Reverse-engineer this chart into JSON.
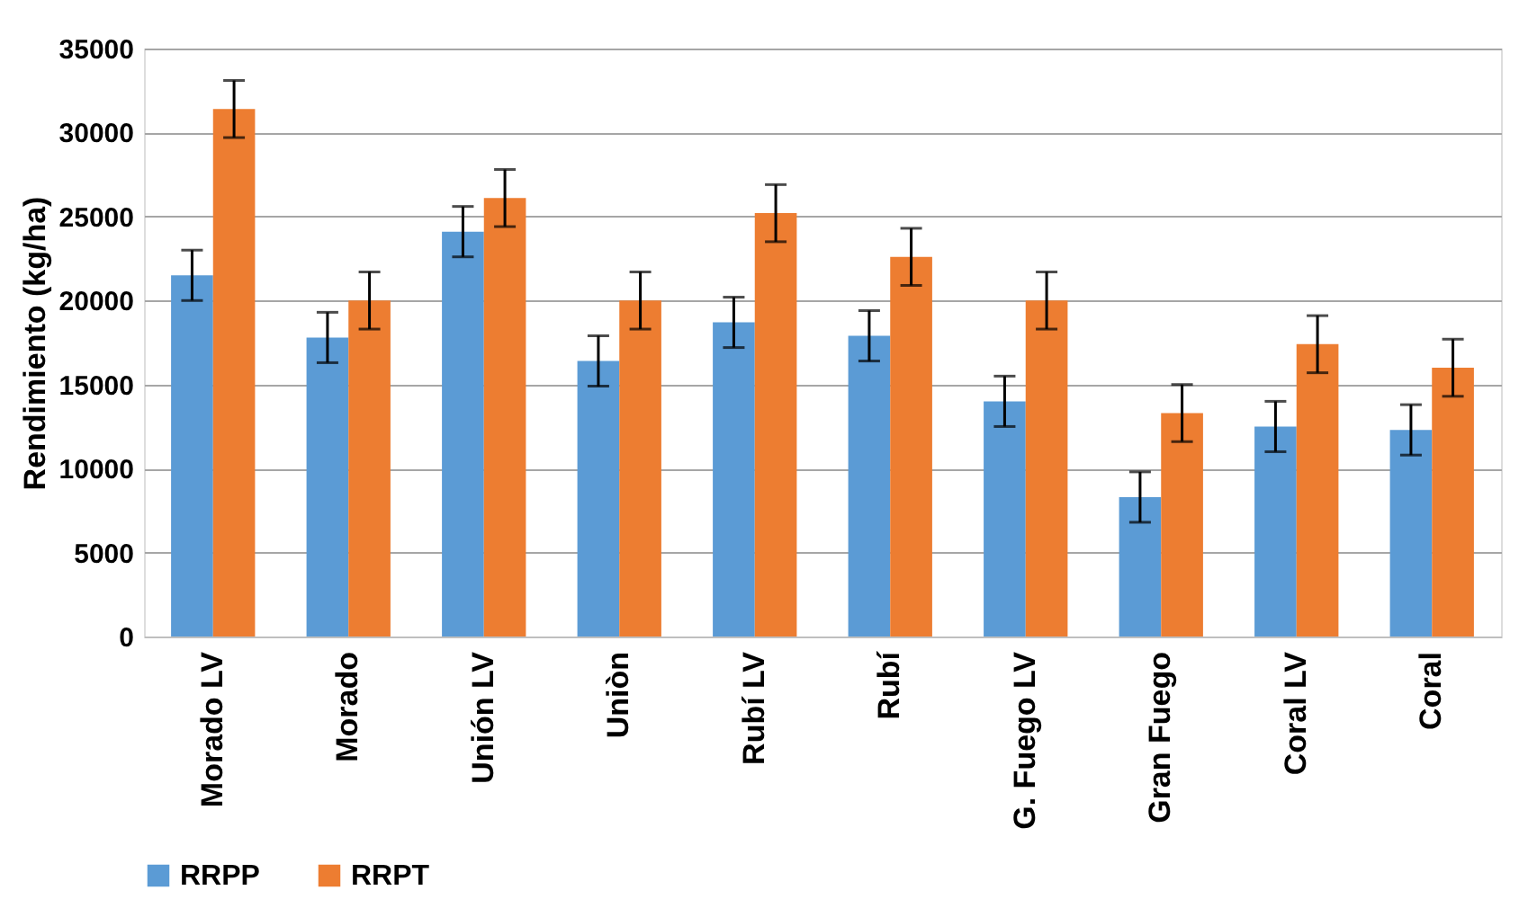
{
  "chart_data": {
    "type": "bar",
    "ylabel": "Rendimiento (kg/ha)",
    "categories": [
      "Morado LV",
      "Morado",
      "Unión LV",
      "Uniòn",
      "Rubí LV",
      "Rubí",
      "G. Fuego LV",
      "Gran Fuego",
      "Coral LV",
      "Coral"
    ],
    "series": [
      {
        "name": "RRPP",
        "color": "#5b9bd5",
        "values": [
          21500,
          17800,
          24100,
          16400,
          18700,
          17900,
          14000,
          8300,
          12500,
          12300
        ],
        "errors": [
          1500,
          1500,
          1500,
          1500,
          1500,
          1500,
          1500,
          1500,
          1500,
          1500
        ]
      },
      {
        "name": "RRPT",
        "color": "#ed7d31",
        "values": [
          31400,
          20000,
          26100,
          20000,
          25200,
          22600,
          20000,
          13300,
          17400,
          16000
        ],
        "errors": [
          1700,
          1700,
          1700,
          1700,
          1700,
          1700,
          1700,
          1700,
          1700,
          1700
        ]
      }
    ],
    "ylim": [
      0,
      35000
    ],
    "yticks": [
      0,
      5000,
      10000,
      15000,
      20000,
      25000,
      30000,
      35000
    ],
    "grid": "y",
    "legend": "bottom"
  }
}
